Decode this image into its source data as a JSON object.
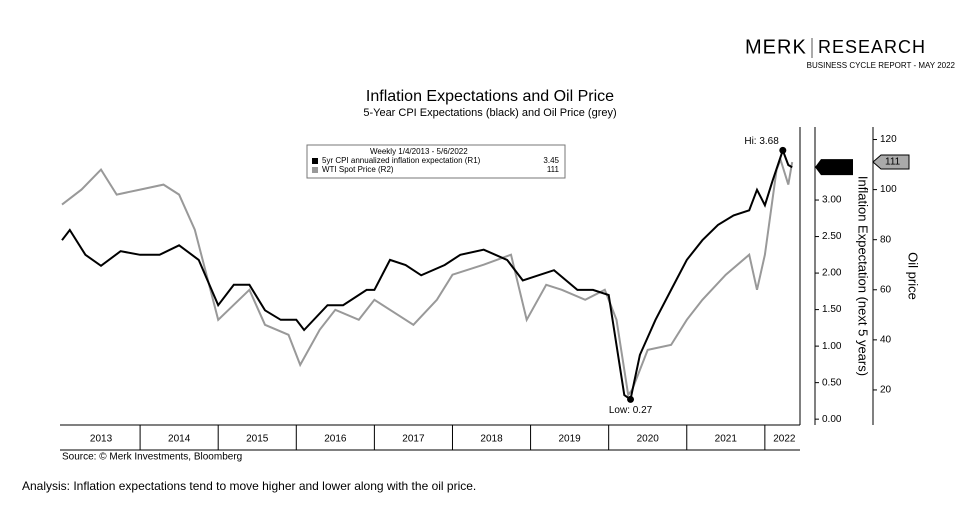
{
  "header": {
    "brand": "MERK",
    "division": "RESEARCH",
    "report": "BUSINESS CYCLE REPORT - MAY 2022"
  },
  "chart_data": {
    "type": "line",
    "title": "Inflation Expectations and Oil Price",
    "subtitle": "5-Year CPI Expectations (black) and Oil Price (grey)",
    "legend_title": "Weekly 1/4/2013 - 5/6/2022",
    "y_label": "Inflation Expectation (next 5 years)",
    "y2_label": "Oil price",
    "xlim": [
      2013,
      2022.45
    ],
    "xticks": [
      {
        "value": 2013.5,
        "label": "2013"
      },
      {
        "value": 2014.5,
        "label": "2014"
      },
      {
        "value": 2015.5,
        "label": "2015"
      },
      {
        "value": 2016.5,
        "label": "2016"
      },
      {
        "value": 2017.5,
        "label": "2017"
      },
      {
        "value": 2018.5,
        "label": "2018"
      },
      {
        "value": 2019.5,
        "label": "2019"
      },
      {
        "value": 2020.5,
        "label": "2020"
      },
      {
        "value": 2021.5,
        "label": "2021"
      },
      {
        "value": 2022.25,
        "label": "2022"
      }
    ],
    "ylim": [
      -0.08,
      4.0
    ],
    "yticks": [
      {
        "value": 0,
        "label": "0.00"
      },
      {
        "value": 0.5,
        "label": "0.50"
      },
      {
        "value": 1,
        "label": "1.00"
      },
      {
        "value": 1.5,
        "label": "1.50"
      },
      {
        "value": 2,
        "label": "2.00"
      },
      {
        "value": 2.5,
        "label": "2.50"
      },
      {
        "value": 3,
        "label": "3.00"
      }
    ],
    "y2lim": [
      6,
      125
    ],
    "y2ticks": [
      20,
      40,
      60,
      80,
      100,
      120
    ],
    "series": [
      {
        "name": "5yr CPI annualized inflation expectation (R1)",
        "color": "#000000",
        "axis": "y",
        "last_value": 3.45,
        "x": [
          2013.0,
          2013.1,
          2013.3,
          2013.5,
          2013.75,
          2014.0,
          2014.25,
          2014.5,
          2014.75,
          2015.0,
          2015.2,
          2015.4,
          2015.6,
          2015.8,
          2016.0,
          2016.1,
          2016.4,
          2016.6,
          2016.9,
          2017.0,
          2017.2,
          2017.4,
          2017.6,
          2017.9,
          2018.1,
          2018.4,
          2018.7,
          2018.9,
          2019.1,
          2019.3,
          2019.6,
          2019.8,
          2020.0,
          2020.2,
          2020.28,
          2020.4,
          2020.6,
          2020.8,
          2021.0,
          2021.2,
          2021.4,
          2021.6,
          2021.8,
          2021.9,
          2022.0,
          2022.1,
          2022.23,
          2022.3,
          2022.35
        ],
        "values": [
          2.45,
          2.59,
          2.25,
          2.1,
          2.3,
          2.25,
          2.25,
          2.38,
          2.18,
          1.56,
          1.84,
          1.84,
          1.49,
          1.36,
          1.36,
          1.22,
          1.56,
          1.56,
          1.77,
          1.77,
          2.18,
          2.11,
          1.97,
          2.11,
          2.25,
          2.32,
          2.18,
          1.9,
          1.97,
          2.04,
          1.77,
          1.77,
          1.7,
          0.33,
          0.27,
          0.88,
          1.36,
          1.77,
          2.18,
          2.45,
          2.66,
          2.79,
          2.86,
          3.14,
          2.93,
          3.27,
          3.68,
          3.48,
          3.45
        ]
      },
      {
        "name": "WTI Spot Price (R2)",
        "color": "#999999",
        "axis": "y2",
        "last_value": 111,
        "x": [
          2013.0,
          2013.25,
          2013.5,
          2013.7,
          2014.0,
          2014.3,
          2014.5,
          2014.7,
          2014.9,
          2015.0,
          2015.2,
          2015.4,
          2015.6,
          2015.9,
          2016.05,
          2016.3,
          2016.5,
          2016.8,
          2017.0,
          2017.3,
          2017.5,
          2017.8,
          2018.0,
          2018.4,
          2018.75,
          2018.95,
          2019.2,
          2019.4,
          2019.7,
          2019.95,
          2020.1,
          2020.25,
          2020.3,
          2020.5,
          2020.8,
          2021.0,
          2021.2,
          2021.5,
          2021.8,
          2021.9,
          2022.0,
          2022.15,
          2022.2,
          2022.3,
          2022.35
        ],
        "values": [
          94,
          100,
          108,
          98,
          100,
          102,
          98,
          84,
          60,
          48,
          54,
          60,
          46,
          42,
          30,
          44,
          52,
          48,
          56,
          50,
          46,
          56,
          66,
          70,
          74,
          48,
          62,
          60,
          56,
          60,
          48,
          18,
          20,
          36,
          38,
          48,
          56,
          66,
          74,
          60,
          74,
          108,
          112,
          102,
          111
        ]
      }
    ],
    "annotations": [
      {
        "text": "Hi: 3.68",
        "x": 2022.23,
        "value": 3.68
      },
      {
        "text": "Low: 0.27",
        "x": 2020.28,
        "value": 0.27
      }
    ],
    "source": "Source: © Merk Investments, Bloomberg"
  },
  "footer": {
    "analysis": "Analysis: Inflation expectations tend to move higher and lower along with the oil price."
  }
}
